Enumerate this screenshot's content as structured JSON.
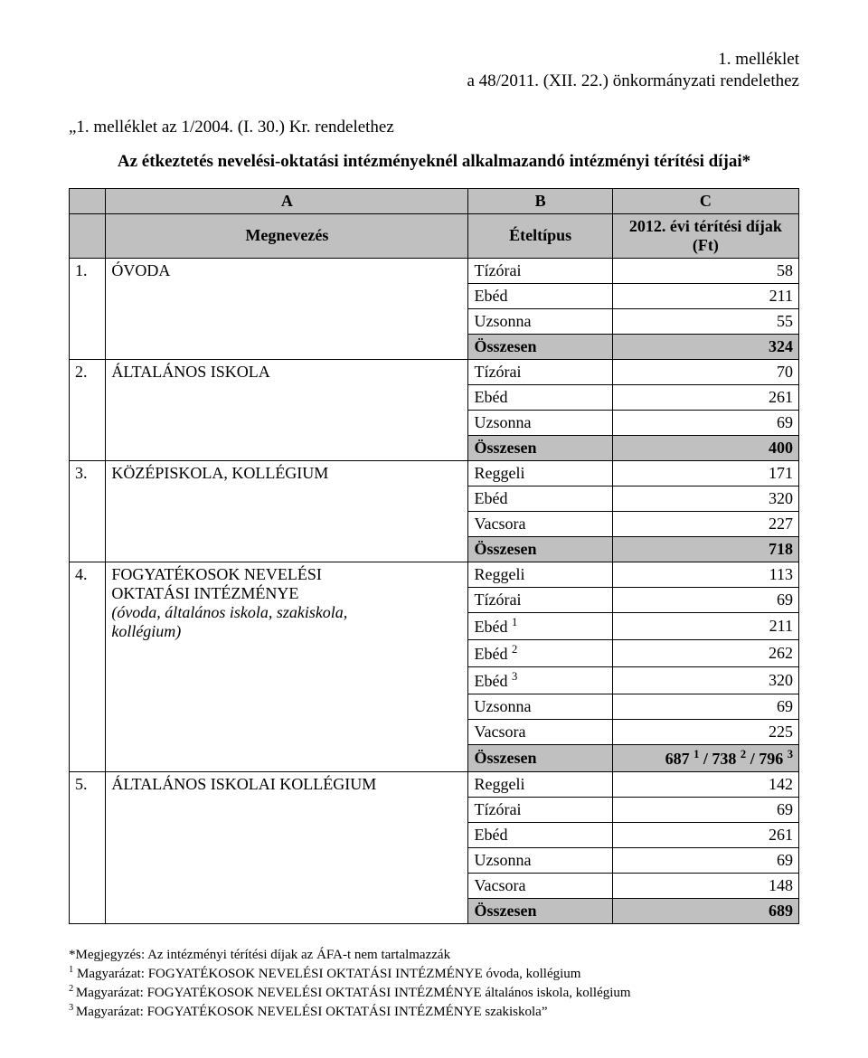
{
  "header": {
    "line1": "1. melléklet",
    "line2": "a 48/2011. (XII. 22.) önkormányzati rendelethez"
  },
  "quote_line": "„1. melléklet az 1/2004. (I. 30.) Kr. rendelethez",
  "title": "Az étkeztetés nevelési-oktatási intézményeknél alkalmazandó intézményi térítési díjai*",
  "table": {
    "column_letters": {
      "a": "A",
      "b": "B",
      "c": "C"
    },
    "headers": {
      "name": "Megnevezés",
      "type": "Ételtípus",
      "value": "2012. évi térítési díjak (Ft)"
    },
    "sections": [
      {
        "num": "1.",
        "name": "ÓVODA",
        "rows": [
          {
            "type": "Tízórai",
            "value": "58"
          },
          {
            "type": "Ebéd",
            "value": "211"
          },
          {
            "type": "Uzsonna",
            "value": "55"
          }
        ],
        "sum": {
          "type": "Összesen",
          "value": "324"
        }
      },
      {
        "num": "2.",
        "name": "ÁLTALÁNOS ISKOLA",
        "rows": [
          {
            "type": "Tízórai",
            "value": "70"
          },
          {
            "type": "Ebéd",
            "value": "261"
          },
          {
            "type": "Uzsonna",
            "value": "69"
          }
        ],
        "sum": {
          "type": "Összesen",
          "value": "400"
        }
      },
      {
        "num": "3.",
        "name": "KÖZÉPISKOLA, KOLLÉGIUM",
        "rows": [
          {
            "type": "Reggeli",
            "value": "171"
          },
          {
            "type": "Ebéd",
            "value": "320"
          },
          {
            "type": "Vacsora",
            "value": "227"
          }
        ],
        "sum": {
          "type": "Összesen",
          "value": "718"
        }
      },
      {
        "num": "4.",
        "name_line1": "FOGYATÉKOSOK NEVELÉSI",
        "name_line2": "OKTATÁSI INTÉZMÉNYE",
        "name_line3": "(óvoda, általános iskola, szakiskola,",
        "name_line4": "kollégium)",
        "rows": [
          {
            "type": "Reggeli",
            "value": "113"
          },
          {
            "type": "Tízórai",
            "value": "69"
          },
          {
            "type_html": "Ebéd <sup>1</sup>",
            "value": "211"
          },
          {
            "type_html": "Ebéd <sup>2</sup>",
            "value": "262"
          },
          {
            "type_html": "Ebéd <sup>3</sup>",
            "value": "320"
          },
          {
            "type": "Uzsonna",
            "value": "69"
          },
          {
            "type": "Vacsora",
            "value": "225"
          }
        ],
        "sum": {
          "type": "Összesen",
          "value_html": "687 <sup>1</sup> / 738 <sup>2</sup> / 796 <sup>3</sup>"
        }
      },
      {
        "num": "5.",
        "name": "ÁLTALÁNOS ISKOLAI KOLLÉGIUM",
        "rows": [
          {
            "type": "Reggeli",
            "value": "142"
          },
          {
            "type": "Tízórai",
            "value": "69"
          },
          {
            "type": "Ebéd",
            "value": "261"
          },
          {
            "type": "Uzsonna",
            "value": "69"
          },
          {
            "type": "Vacsora",
            "value": "148"
          }
        ],
        "sum": {
          "type": "Összesen",
          "value": "689"
        }
      }
    ]
  },
  "notes": {
    "n1": "*Megjegyzés: Az intézményi térítési díjak az ÁFA-t nem tartalmazzák",
    "n2_html": "<sup>1</sup> Magyarázat: FOGYATÉKOSOK NEVELÉSI OKTATÁSI INTÉZMÉNYE óvoda, kollégium",
    "n3_html": "<sup>2 </sup>Magyarázat: FOGYATÉKOSOK NEVELÉSI OKTATÁSI INTÉZMÉNYE általános iskola, kollégium",
    "n4_html": "<sup>3 </sup>Magyarázat: FOGYATÉKOSOK NEVELÉSI OKTATÁSI INTÉZMÉNYE szakiskola”"
  },
  "colors": {
    "header_bg": "#c0c0c0",
    "text": "#000000",
    "background": "#ffffff"
  }
}
